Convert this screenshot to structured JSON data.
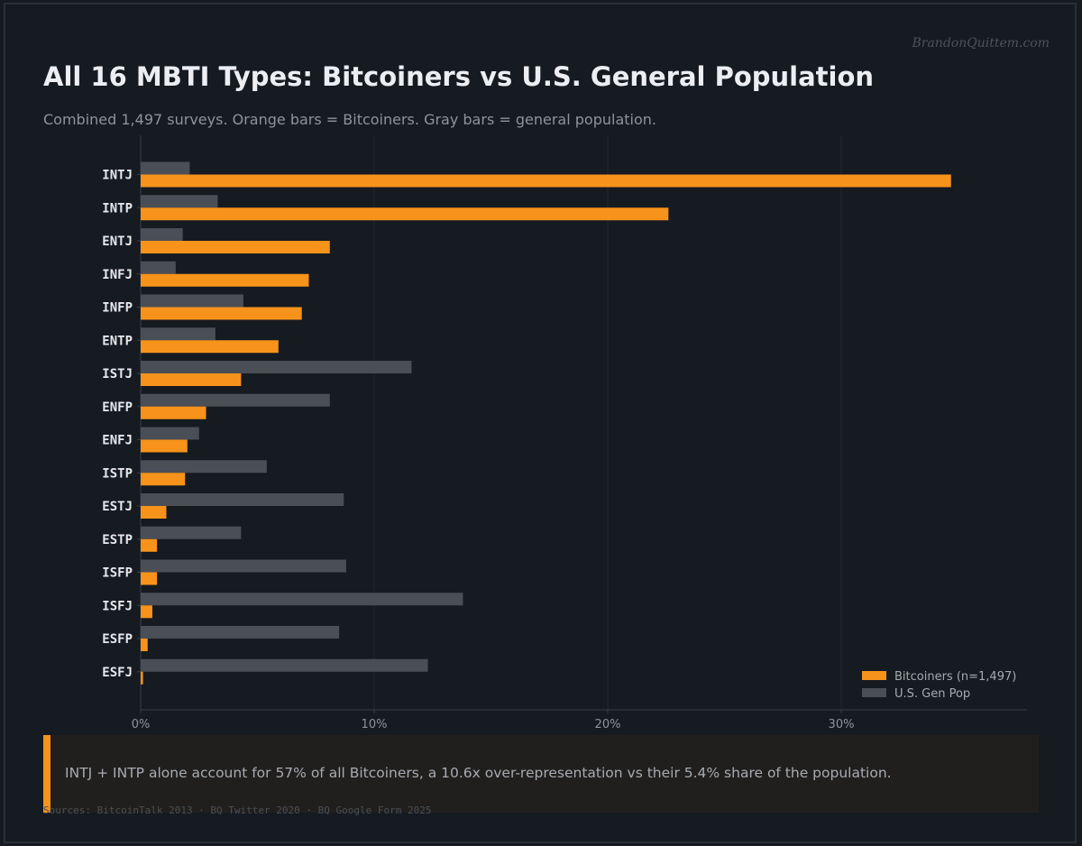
{
  "watermark": "BrandonQuittem.com",
  "title": "All 16 MBTI Types: Bitcoiners vs U.S. General Population",
  "subtitle": "Combined 1,497 surveys. Orange bars = Bitcoiners. Gray bars = general population.",
  "callout": "INTJ + INTP alone account for 57% of all Bitcoiners, a 10.6x over-representation vs their 5.4% share of the population.",
  "sources": "Sources: BitcoinTalk 2013 · BQ Twitter 2020 · BQ Google Form 2025",
  "colors": {
    "bitcoiners": "#f7931a",
    "genpop": "#4a4e56",
    "background": "#161a21",
    "accent": "#f7931a"
  },
  "chart_data": {
    "type": "bar",
    "orientation": "horizontal",
    "categories": [
      "INTJ",
      "INTP",
      "ENTJ",
      "INFJ",
      "INFP",
      "ENTP",
      "ISTJ",
      "ENFP",
      "ENFJ",
      "ISTP",
      "ESTJ",
      "ESTP",
      "ISFP",
      "ISFJ",
      "ESFP",
      "ESFJ"
    ],
    "series": [
      {
        "name": "U.S. Gen Pop",
        "values": [
          2.1,
          3.3,
          1.8,
          1.5,
          4.4,
          3.2,
          11.6,
          8.1,
          2.5,
          5.4,
          8.7,
          4.3,
          8.8,
          13.8,
          8.5,
          12.3
        ]
      },
      {
        "name": "Bitcoiners (n=1,497)",
        "values": [
          34.7,
          22.6,
          8.1,
          7.2,
          6.9,
          5.9,
          4.3,
          2.8,
          2.0,
          1.9,
          1.1,
          0.7,
          0.7,
          0.5,
          0.3,
          0.1
        ]
      }
    ],
    "xlim": [
      0,
      38
    ],
    "xticks": [
      0,
      10,
      20,
      30
    ],
    "xtick_labels": [
      "0%",
      "10%",
      "20%",
      "30%"
    ],
    "grid": "vertical",
    "legend_position": "bottom-right"
  }
}
